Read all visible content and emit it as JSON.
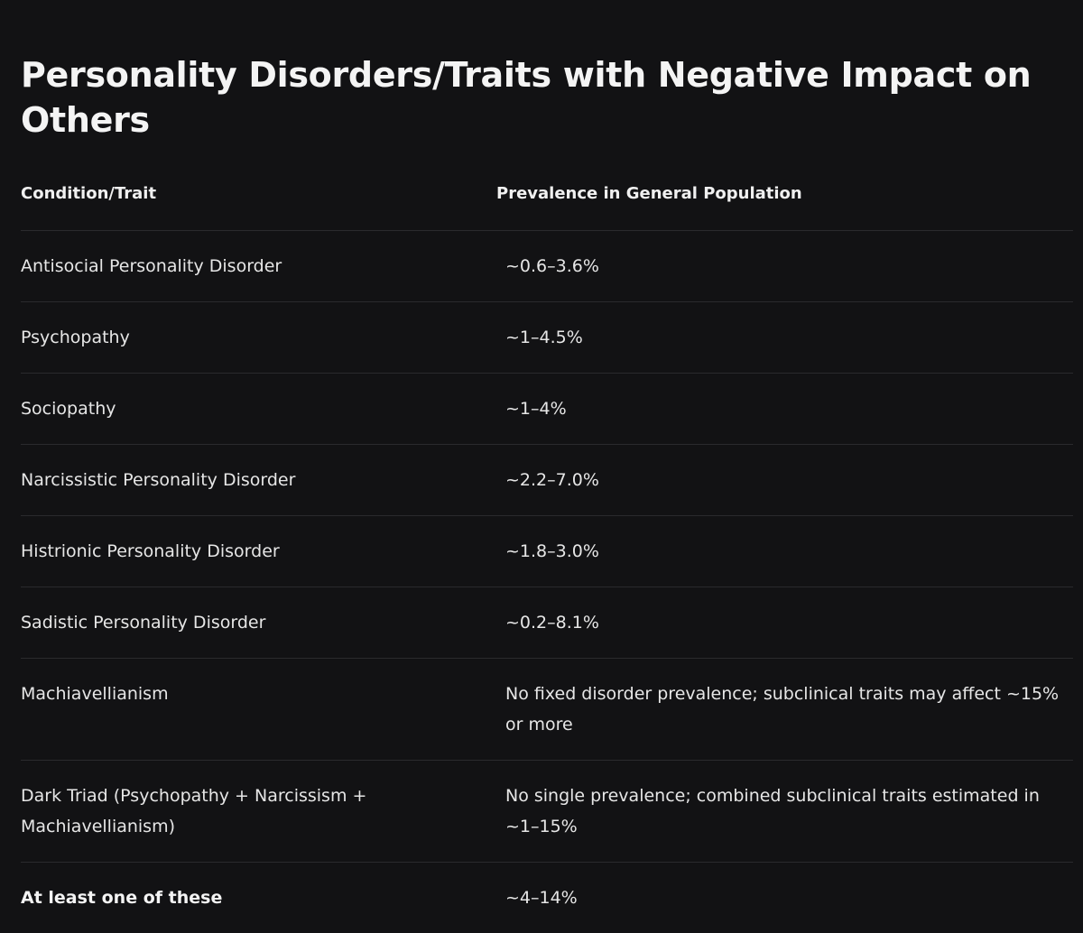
{
  "title": "Personality Disorders/Traits with Negative Impact on Others",
  "table": {
    "headers": [
      "Condition/Trait",
      "Prevalence in General Population"
    ],
    "rows": [
      {
        "condition": "Antisocial Personality Disorder",
        "prevalence": "~0.6–3.6%"
      },
      {
        "condition": "Psychopathy",
        "prevalence": "~1–4.5%"
      },
      {
        "condition": "Sociopathy",
        "prevalence": "~1–4%"
      },
      {
        "condition": "Narcissistic Personality Disorder",
        "prevalence": "~2.2–7.0%"
      },
      {
        "condition": "Histrionic Personality Disorder",
        "prevalence": "~1.8–3.0%"
      },
      {
        "condition": "Sadistic Personality Disorder",
        "prevalence": "~0.2–8.1%"
      },
      {
        "condition": "Machiavellianism",
        "prevalence": "No fixed disorder prevalence; subclinical traits may affect ~15% or more"
      },
      {
        "condition": "Dark Triad (Psychopathy + Narcissism + Machiavellianism)",
        "prevalence": "No single prevalence; combined subclinical traits estimated in ~1–15%"
      },
      {
        "condition": "At least one of these",
        "prevalence": "~4–14%"
      }
    ]
  }
}
